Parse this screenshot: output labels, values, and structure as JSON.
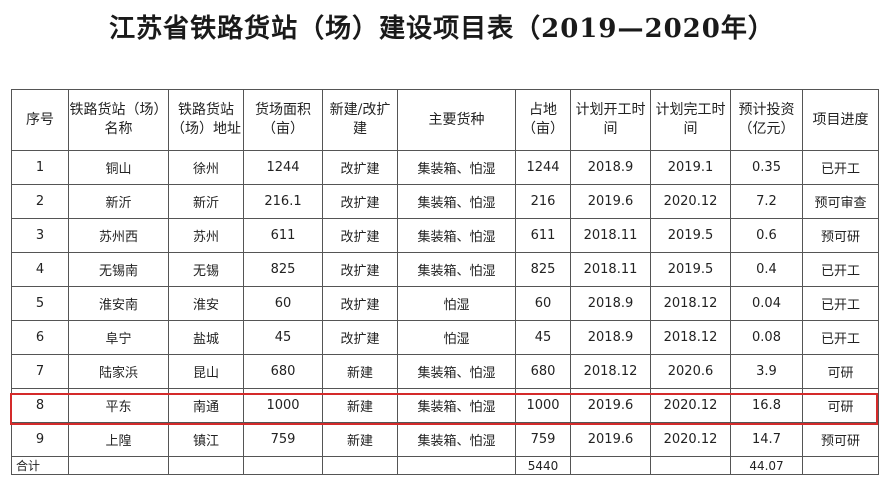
{
  "title": "江苏省铁路货站（场）建设项目表（2019—2020年）",
  "headers": [
    "序号",
    "铁路货站（场）名称",
    "铁路货站（场）地址",
    "货场面积（亩）",
    "新建/改扩建",
    "主要货种",
    "占地（亩）",
    "计划开工时间",
    "计划完工时间",
    "预计投资（亿元）",
    "项目进度"
  ],
  "rows": [
    {
      "no": "1",
      "name": "铜山",
      "addr": "徐州",
      "area": "1244",
      "type": "改扩建",
      "cargo": "集装箱、怕湿",
      "land": "1244",
      "start": "2018.9",
      "end": "2019.1",
      "invest": "0.35",
      "progress": "已开工"
    },
    {
      "no": "2",
      "name": "新沂",
      "addr": "新沂",
      "area": "216.1",
      "type": "改扩建",
      "cargo": "集装箱、怕湿",
      "land": "216",
      "start": "2019.6",
      "end": "2020.12",
      "invest": "7.2",
      "progress": "预可审查"
    },
    {
      "no": "3",
      "name": "苏州西",
      "addr": "苏州",
      "area": "611",
      "type": "改扩建",
      "cargo": "集装箱、怕湿",
      "land": "611",
      "start": "2018.11",
      "end": "2019.5",
      "invest": "0.6",
      "progress": "预可研"
    },
    {
      "no": "4",
      "name": "无锡南",
      "addr": "无锡",
      "area": "825",
      "type": "改扩建",
      "cargo": "集装箱、怕湿",
      "land": "825",
      "start": "2018.11",
      "end": "2019.5",
      "invest": "0.4",
      "progress": "已开工"
    },
    {
      "no": "5",
      "name": "淮安南",
      "addr": "淮安",
      "area": "60",
      "type": "改扩建",
      "cargo": "怕湿",
      "land": "60",
      "start": "2018.9",
      "end": "2018.12",
      "invest": "0.04",
      "progress": "已开工"
    },
    {
      "no": "6",
      "name": "阜宁",
      "addr": "盐城",
      "area": "45",
      "type": "改扩建",
      "cargo": "怕湿",
      "land": "45",
      "start": "2018.9",
      "end": "2018.12",
      "invest": "0.08",
      "progress": "已开工"
    },
    {
      "no": "7",
      "name": "陆家浜",
      "addr": "昆山",
      "area": "680",
      "type": "新建",
      "cargo": "集装箱、怕湿",
      "land": "680",
      "start": "2018.12",
      "end": "2020.6",
      "invest": "3.9",
      "progress": "可研"
    },
    {
      "no": "8",
      "name": "平东",
      "addr": "南通",
      "area": "1000",
      "type": "新建",
      "cargo": "集装箱、怕湿",
      "land": "1000",
      "start": "2019.6",
      "end": "2020.12",
      "invest": "16.8",
      "progress": "可研"
    },
    {
      "no": "9",
      "name": "上隍",
      "addr": "镇江",
      "area": "759",
      "type": "新建",
      "cargo": "集装箱、怕湿",
      "land": "759",
      "start": "2019.6",
      "end": "2020.12",
      "invest": "14.7",
      "progress": "预可研"
    }
  ],
  "total": {
    "label": "合计",
    "land": "5440",
    "invest": "44.07"
  },
  "highlight_color": "#d42a2a"
}
